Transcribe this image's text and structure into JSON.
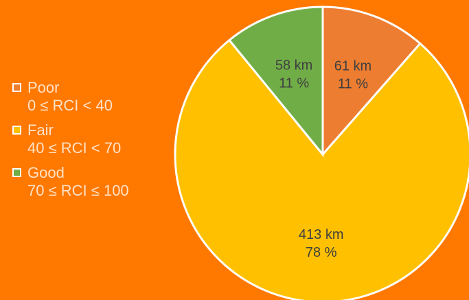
{
  "chart_data": {
    "type": "pie",
    "categories": [
      "Poor",
      "Fair",
      "Good"
    ],
    "ranges": [
      "0 ≤ RCI < 40",
      "40 ≤ RCI < 70",
      "70 ≤ RCI ≤ 100"
    ],
    "values": [
      61,
      413,
      58
    ],
    "data_labels": [
      {
        "distance": "61 km",
        "percent": "11 %"
      },
      {
        "distance": "413 km",
        "percent": "78 %"
      },
      {
        "distance": "58 km",
        "percent": "11 %"
      }
    ],
    "colors": [
      "#ed7d31",
      "#ffc000",
      "#70ad47"
    ],
    "legend_position": "left",
    "grid": false
  },
  "style": {
    "background": "#ff7800",
    "slice_border": "#ffffff"
  }
}
